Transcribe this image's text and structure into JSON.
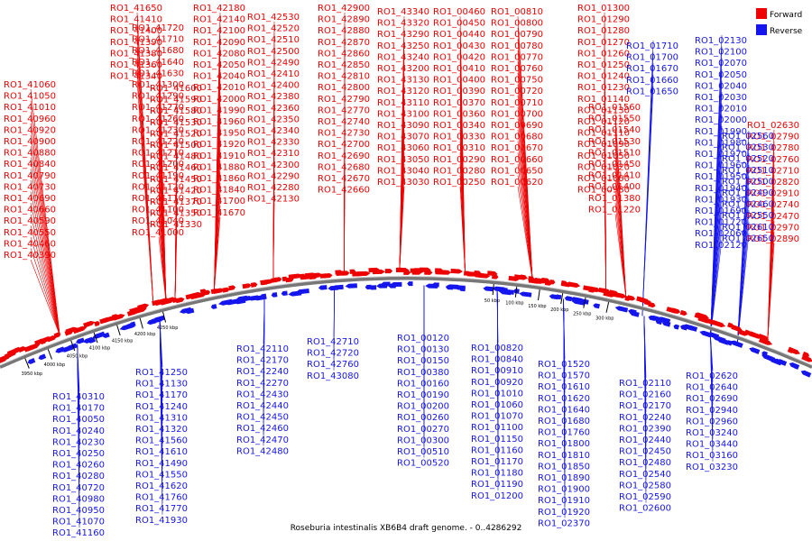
{
  "caption": "Roseburia intestinalis XB6B4 draft genome. - 0..4286292",
  "legend": [
    {
      "label": "Forward",
      "color": "#ee0000"
    },
    {
      "label": "Reverse",
      "color": "#1515ee"
    }
  ],
  "colors": {
    "forward": "#ee0000",
    "reverse": "#1515ee",
    "backbone": "#777777"
  },
  "ticks": [
    "3950 kbp",
    "4000 kbp",
    "4050 kbp",
    "4100 kbp",
    "4150 kbp",
    "4200 kbp",
    "4250 kbp",
    "50 kbp",
    "100 kbp",
    "150 kbp",
    "200 kbp",
    "250 kbp",
    "300 kbp"
  ],
  "forward_labels": [
    "RO1_41650",
    "RO1_41410",
    "RO1_41400",
    "RO1_41390",
    "RO1_41380",
    "RO1_41360",
    "RO1_41340",
    "RO1_41060",
    "RO1_41050",
    "RO1_41010",
    "RO1_40960",
    "RO1_40920",
    "RO1_40900",
    "RO1_40880",
    "RO1_40840",
    "RO1_40790",
    "RO1_40730",
    "RO1_40690",
    "RO1_40660",
    "RO1_40590",
    "RO1_40550",
    "RO1_40460",
    "RO1_40390",
    "RO1_41720",
    "RO1_41710",
    "RO1_41680",
    "RO1_41640",
    "RO1_41630",
    "RO1_41300",
    "RO1_41290",
    "RO1_41270",
    "RO1_41260",
    "RO1_41230",
    "RO1_41220",
    "RO1_41210",
    "RO1_41200",
    "RO1_41190",
    "RO1_41120",
    "RO1_41110",
    "RO1_41100",
    "RO1_41040",
    "RO1_41000",
    "RO1_41600",
    "RO1_41590",
    "RO1_41580",
    "RO1_41530",
    "RO1_41520",
    "RO1_41500",
    "RO1_41480",
    "RO1_41460",
    "RO1_41450",
    "RO1_41420",
    "RO1_41370",
    "RO1_41350",
    "RO1_41330",
    "RO1_42180",
    "RO1_42140",
    "RO1_42100",
    "RO1_42090",
    "RO1_42080",
    "RO1_42050",
    "RO1_42040",
    "RO1_42010",
    "RO1_42000",
    "RO1_41990",
    "RO1_41960",
    "RO1_41950",
    "RO1_41920",
    "RO1_41910",
    "RO1_41880",
    "RO1_41860",
    "RO1_41840",
    "RO1_41700",
    "RO1_41670",
    "RO1_42530",
    "RO1_42520",
    "RO1_42510",
    "RO1_42500",
    "RO1_42490",
    "RO1_42410",
    "RO1_42400",
    "RO1_42380",
    "RO1_42360",
    "RO1_42350",
    "RO1_42340",
    "RO1_42330",
    "RO1_42310",
    "RO1_42300",
    "RO1_42290",
    "RO1_42280",
    "RO1_42130",
    "RO1_42900",
    "RO1_42890",
    "RO1_42880",
    "RO1_42870",
    "RO1_42860",
    "RO1_42850",
    "RO1_42810",
    "RO1_42800",
    "RO1_42790",
    "RO1_42770",
    "RO1_42740",
    "RO1_42730",
    "RO1_42700",
    "RO1_42690",
    "RO1_42680",
    "RO1_42670",
    "RO1_42660",
    "RO1_43340",
    "RO1_43320",
    "RO1_43290",
    "RO1_43250",
    "RO1_43240",
    "RO1_43200",
    "RO1_43130",
    "RO1_43120",
    "RO1_43110",
    "RO1_43100",
    "RO1_43090",
    "RO1_43070",
    "RO1_43060",
    "RO1_43050",
    "RO1_43040",
    "RO1_43030",
    "RO1_00460",
    "RO1_00450",
    "RO1_00440",
    "RO1_00430",
    "RO1_00420",
    "RO1_00410",
    "RO1_00400",
    "RO1_00390",
    "RO1_00370",
    "RO1_00360",
    "RO1_00340",
    "RO1_00330",
    "RO1_00310",
    "RO1_00290",
    "RO1_00280",
    "RO1_00250",
    "RO1_00810",
    "RO1_00800",
    "RO1_00790",
    "RO1_00780",
    "RO1_00770",
    "RO1_00760",
    "RO1_00750",
    "RO1_00720",
    "RO1_00710",
    "RO1_00700",
    "RO1_00690",
    "RO1_00680",
    "RO1_00670",
    "RO1_00660",
    "RO1_00650",
    "RO1_00620",
    "RO1_01300",
    "RO1_01290",
    "RO1_01280",
    "RO1_01270",
    "RO1_01260",
    "RO1_01250",
    "RO1_01240",
    "RO1_01230",
    "RO1_01140",
    "RO1_01130",
    "RO1_01120",
    "RO1_01110",
    "RO1_01090",
    "RO1_01050",
    "RO1_01020",
    "RO1_01000",
    "RO1_00980",
    "RO1_01560",
    "RO1_01550",
    "RO1_01540",
    "RO1_01530",
    "RO1_01510",
    "RO1_01450",
    "RO1_01410",
    "RO1_01400",
    "RO1_01380",
    "RO1_01220",
    "RO1_02630",
    "RO1_02790",
    "RO1_02780",
    "RO1_02760",
    "RO1_02710",
    "RO1_02820",
    "RO1_02910",
    "RO1_02740",
    "RO1_02470",
    "RO1_02970",
    "RO1_02890"
  ],
  "reverse_labels": [
    "RO1_01710",
    "RO1_01700",
    "RO1_01670",
    "RO1_01660",
    "RO1_01650",
    "RO1_02130",
    "RO1_02100",
    "RO1_02070",
    "RO1_02050",
    "RO1_02040",
    "RO1_02030",
    "RO1_02010",
    "RO1_02000",
    "RO1_01990",
    "RO1_01980",
    "RO1_01970",
    "RO1_01960",
    "RO1_01950",
    "RO1_01940",
    "RO1_01930",
    "RO1_01690",
    "RO1_01720",
    "RO1_02060",
    "RO1_02120",
    "RO1_02560",
    "RO1_02530",
    "RO1_02520",
    "RO1_02510",
    "RO1_02500",
    "RO1_02490",
    "RO1_02460",
    "RO1_02550",
    "RO1_02610",
    "RO1_02650",
    "RO1_40310",
    "RO1_40170",
    "RO1_40050",
    "RO1_40240",
    "RO1_40230",
    "RO1_40250",
    "RO1_40260",
    "RO1_40280",
    "RO1_40720",
    "RO1_40980",
    "RO1_40950",
    "RO1_41070",
    "RO1_41160",
    "RO1_41250",
    "RO1_41130",
    "RO1_41170",
    "RO1_41240",
    "RO1_41310",
    "RO1_41320",
    "RO1_41560",
    "RO1_41610",
    "RO1_41490",
    "RO1_41550",
    "RO1_41620",
    "RO1_41760",
    "RO1_41770",
    "RO1_41930",
    "RO1_42110",
    "RO1_42170",
    "RO1_42240",
    "RO1_42270",
    "RO1_42430",
    "RO1_42440",
    "RO1_42450",
    "RO1_42460",
    "RO1_42470",
    "RO1_42480",
    "RO1_42710",
    "RO1_42720",
    "RO1_42760",
    "RO1_43080",
    "RO1_00120",
    "RO1_00130",
    "RO1_00150",
    "RO1_00380",
    "RO1_00160",
    "RO1_00190",
    "RO1_00200",
    "RO1_00260",
    "RO1_00270",
    "RO1_00300",
    "RO1_00510",
    "RO1_00520",
    "RO1_00820",
    "RO1_00840",
    "RO1_00910",
    "RO1_00920",
    "RO1_01010",
    "RO1_01060",
    "RO1_01070",
    "RO1_01100",
    "RO1_01150",
    "RO1_01160",
    "RO1_01170",
    "RO1_01180",
    "RO1_01190",
    "RO1_01200",
    "RO1_01520",
    "RO1_01570",
    "RO1_01610",
    "RO1_01620",
    "RO1_01640",
    "RO1_01680",
    "RO1_01760",
    "RO1_01800",
    "RO1_01810",
    "RO1_01850",
    "RO1_01890",
    "RO1_01900",
    "RO1_01910",
    "RO1_01920",
    "RO1_02370",
    "RO1_02110",
    "RO1_02160",
    "RO1_02170",
    "RO1_02240",
    "RO1_02390",
    "RO1_02440",
    "RO1_02450",
    "RO1_02480",
    "RO1_02540",
    "RO1_02580",
    "RO1_02590",
    "RO1_02600",
    "RO1_02620",
    "RO1_02640",
    "RO1_02690",
    "RO1_02940",
    "RO1_02960",
    "RO1_03240",
    "RO1_03440",
    "RO1_03160",
    "RO1_03230"
  ]
}
